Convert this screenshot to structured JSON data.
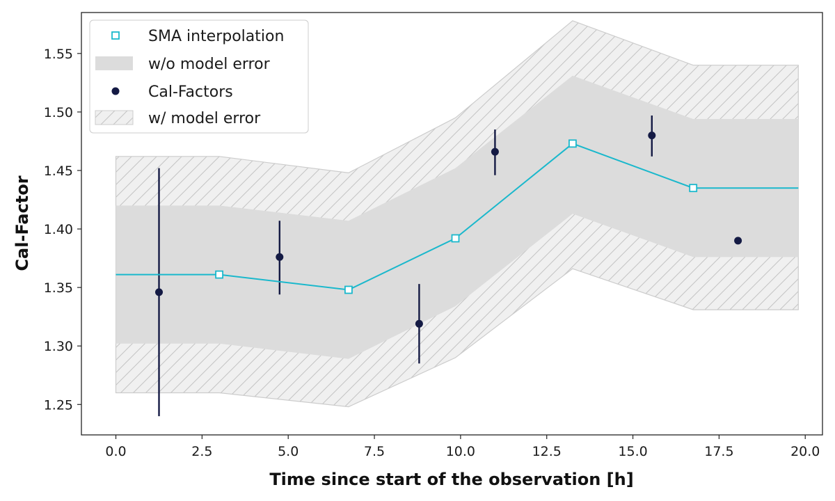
{
  "chart_data": {
    "type": "line",
    "title": "",
    "xlabel": "Time since start of the observation [h]",
    "ylabel": "Cal-Factor",
    "xlim": [
      -1.0,
      20.5
    ],
    "ylim": [
      1.224,
      1.585
    ],
    "xticks": [
      0.0,
      2.5,
      5.0,
      7.5,
      10.0,
      12.5,
      15.0,
      17.5,
      20.0
    ],
    "xtick_labels": [
      "0.0",
      "2.5",
      "5.0",
      "7.5",
      "10.0",
      "12.5",
      "15.0",
      "17.5",
      "20.0"
    ],
    "yticks": [
      1.25,
      1.3,
      1.35,
      1.4,
      1.45,
      1.5,
      1.55
    ],
    "ytick_labels": [
      "1.25",
      "1.30",
      "1.35",
      "1.40",
      "1.45",
      "1.50",
      "1.55"
    ],
    "grid": false,
    "legend_position": "top-left",
    "legend": [
      {
        "key": "sma",
        "label": "SMA interpolation"
      },
      {
        "key": "band_inner",
        "label": "w/o model error"
      },
      {
        "key": "points",
        "label": "Cal-Factors"
      },
      {
        "key": "band_outer",
        "label": "w/ model error"
      }
    ],
    "sma_line": {
      "x": [
        0.0,
        3.0,
        6.75,
        9.85,
        13.25,
        16.75,
        19.8
      ],
      "y": [
        1.361,
        1.361,
        1.348,
        1.392,
        1.473,
        1.435,
        1.435
      ]
    },
    "sma_markers": {
      "x": [
        3.0,
        6.75,
        9.85,
        13.25,
        16.75
      ],
      "y": [
        1.361,
        1.348,
        1.392,
        1.473,
        1.435
      ]
    },
    "band_inner": {
      "x": [
        0.0,
        3.0,
        6.75,
        9.85,
        13.25,
        16.75,
        19.8
      ],
      "upper": [
        1.42,
        1.42,
        1.407,
        1.452,
        1.531,
        1.494,
        1.494
      ],
      "lower": [
        1.302,
        1.302,
        1.289,
        1.334,
        1.413,
        1.376,
        1.376
      ]
    },
    "band_outer": {
      "x": [
        0.0,
        3.0,
        6.75,
        9.85,
        13.25,
        16.75,
        19.8
      ],
      "upper": [
        1.462,
        1.462,
        1.448,
        1.495,
        1.578,
        1.54,
        1.54
      ],
      "lower": [
        1.26,
        1.26,
        1.248,
        1.29,
        1.366,
        1.331,
        1.331
      ]
    },
    "cal_factors": [
      {
        "x": 1.25,
        "y": 1.346,
        "err_low": 1.24,
        "err_high": 1.452
      },
      {
        "x": 4.75,
        "y": 1.376,
        "err_low": 1.344,
        "err_high": 1.407
      },
      {
        "x": 8.8,
        "y": 1.319,
        "err_low": 1.285,
        "err_high": 1.353
      },
      {
        "x": 11.0,
        "y": 1.466,
        "err_low": 1.446,
        "err_high": 1.485
      },
      {
        "x": 15.55,
        "y": 1.48,
        "err_low": 1.462,
        "err_high": 1.497
      },
      {
        "x": 18.05,
        "y": 1.39,
        "err_low": null,
        "err_high": null
      }
    ],
    "colors": {
      "sma": "#1ab8cc",
      "points": "#141a44",
      "band_inner": "#dcdcdc",
      "band_outer_fill": "#f0f0f0",
      "band_outer_edge": "#cccccc",
      "hatch": "#c4c4c4",
      "axes": "#222222"
    }
  }
}
